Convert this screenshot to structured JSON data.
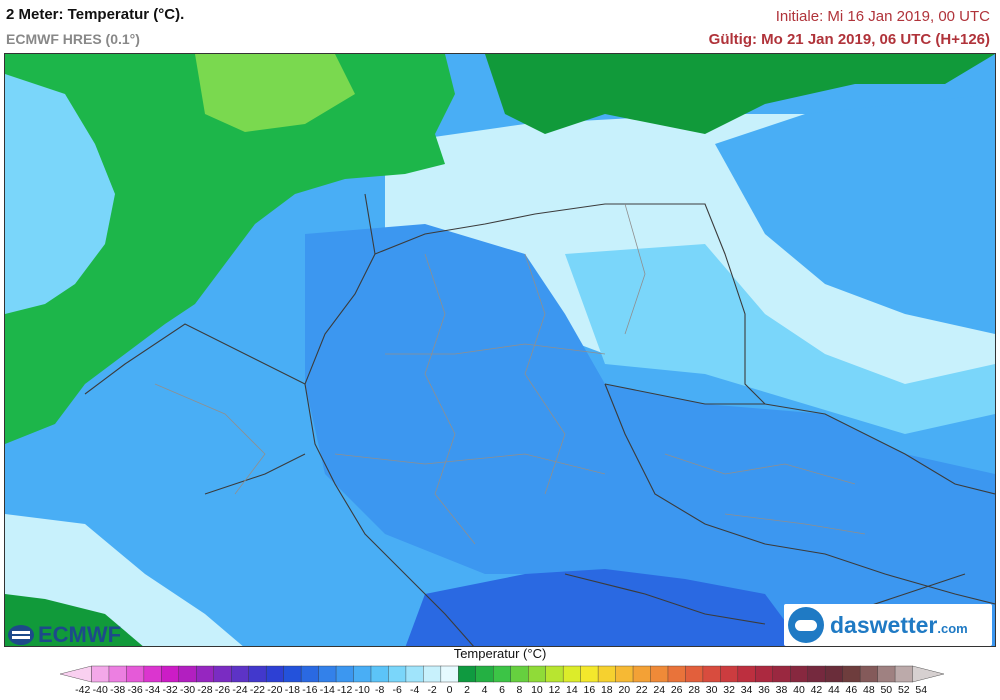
{
  "header": {
    "title": "2 Meter: Temperatur (°C).",
    "subtitle": "ECMWF HRES (0.1°)",
    "init": "Initiale: Mi 16 Jan 2019, 00 UTC",
    "valid": "Gültig: Mo 21 Jan 2019, 06 UTC (H+126)"
  },
  "logos": {
    "ecmwf": "ECMWF",
    "daswetter_main": "daswetter",
    "daswetter_tld": ".com"
  },
  "legend": {
    "title": "Temperatur (°C)",
    "ticks": [
      "-42",
      "-40",
      "-38",
      "-36",
      "-34",
      "-32",
      "-30",
      "-28",
      "-26",
      "-24",
      "-22",
      "-20",
      "-18",
      "-16",
      "-14",
      "-12",
      "-10",
      "-8",
      "-6",
      "-4",
      "-2",
      "0",
      "2",
      "4",
      "6",
      "8",
      "10",
      "12",
      "14",
      "16",
      "18",
      "20",
      "22",
      "24",
      "26",
      "28",
      "30",
      "32",
      "34",
      "36",
      "38",
      "40",
      "42",
      "44",
      "46",
      "48",
      "50",
      "52",
      "54"
    ],
    "colors": [
      "#f9d0f0",
      "#f3a8e9",
      "#ec7fe1",
      "#e55ad8",
      "#db35cf",
      "#cc1cc6",
      "#b21fc0",
      "#9626c0",
      "#7a2cc2",
      "#5d33c6",
      "#4238cc",
      "#2d40d4",
      "#2352db",
      "#2a69e2",
      "#3381ea",
      "#3c97f0",
      "#49aef5",
      "#5cc4f8",
      "#7ad6fa",
      "#a0e4fb",
      "#c8f1fc",
      "#e6faff",
      "#0f9a40",
      "#24b043",
      "#3cc446",
      "#66d03f",
      "#90db38",
      "#b8e530",
      "#dcec2a",
      "#f4e82c",
      "#f6d12f",
      "#f6b934",
      "#f3a136",
      "#ef8a38",
      "#e9733a",
      "#e25f3c",
      "#d84c3e",
      "#cc3c3f",
      "#bd2f3f",
      "#ac2940",
      "#9a2840",
      "#87283f",
      "#75293e",
      "#6a2d3a",
      "#6e3d3d",
      "#845a5a",
      "#9f8181",
      "#bcaaaa",
      "#d6d0d0"
    ]
  },
  "map_colors": {
    "sea_green": "#1db64a",
    "sea_green_dark": "#119a3a",
    "sea_green_light": "#7ad94f",
    "land_light": "#c8f1fc",
    "land_mid": "#7ad6fa",
    "land_blue": "#49aef5",
    "land_cold": "#3c97f0",
    "alps_cold": "#2a69e2"
  }
}
